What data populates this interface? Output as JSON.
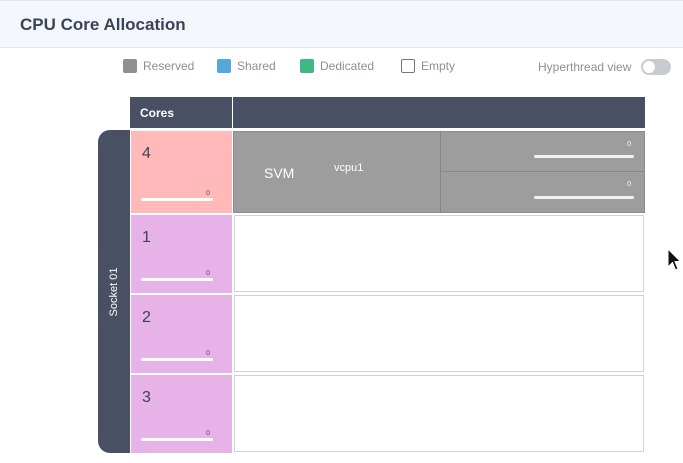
{
  "header": {
    "title": "CPU Core Allocation"
  },
  "legend": [
    {
      "label": "Reserved",
      "color": "#8f8f8f",
      "icon": "reserved-swatch-icon"
    },
    {
      "label": "Shared",
      "color": "#56a8dc",
      "icon": "shared-swatch-icon"
    },
    {
      "label": "Dedicated",
      "color": "#40b883",
      "icon": "dedicated-swatch-icon"
    },
    {
      "label": "Empty",
      "color": "#ffffff",
      "icon": "empty-swatch-icon"
    }
  ],
  "hyperthread": {
    "label": "Hyperthread view",
    "enabled": false
  },
  "grid": {
    "cores_header": "Cores",
    "socket_label": "Socket 01",
    "cores": [
      {
        "number": "4",
        "value": "0",
        "color": "#ffb9b9"
      },
      {
        "number": "1",
        "value": "0",
        "color": "#e6b2e8"
      },
      {
        "number": "2",
        "value": "0",
        "color": "#e6b2e8"
      },
      {
        "number": "3",
        "value": "0",
        "color": "#e6b2e8"
      }
    ],
    "allocation": {
      "vm_name": "SVM",
      "vcpu": "vcpu1",
      "threads": [
        {
          "value": "0"
        },
        {
          "value": "0"
        }
      ]
    }
  }
}
